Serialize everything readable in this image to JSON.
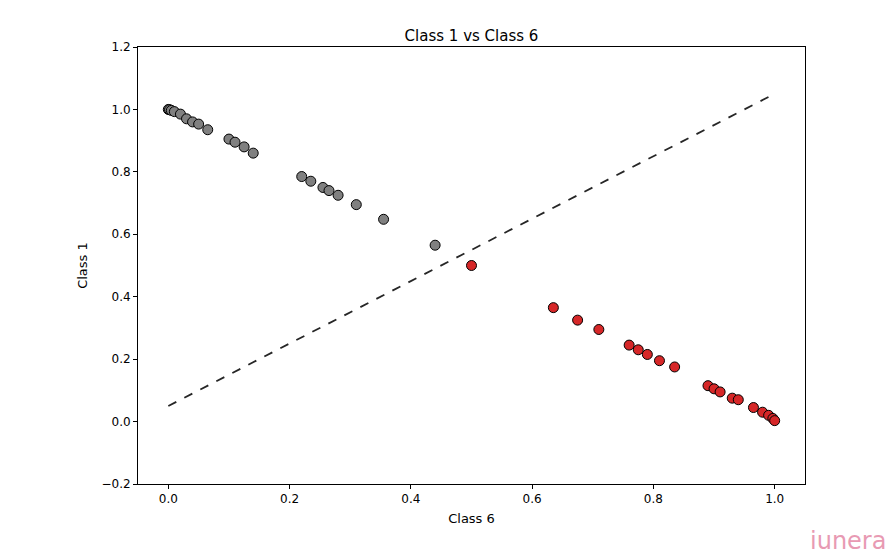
{
  "chart_data": {
    "type": "scatter",
    "title": "Class 1 vs Class 6",
    "x_label": "Class 6",
    "y_label": "Class 1",
    "annotations": [
      "iunera"
    ],
    "grid": false,
    "xlim": [
      -0.05,
      1.05
    ],
    "ylim": [
      -0.2,
      1.2
    ],
    "xticks": [
      {
        "value": 0,
        "label": "0.0"
      },
      {
        "value": 0.2,
        "label": "0.2"
      },
      {
        "value": 0.4,
        "label": "0.4"
      },
      {
        "value": 0.6,
        "label": "0.6"
      },
      {
        "value": 0.8,
        "label": "0.8"
      },
      {
        "value": 1,
        "label": "1.0"
      }
    ],
    "yticks": [
      {
        "value": -0.2,
        "label": "−0.2"
      },
      {
        "value": 0,
        "label": "0.0"
      },
      {
        "value": 0.2,
        "label": "0.2"
      },
      {
        "value": 0.4,
        "label": "0.4"
      },
      {
        "value": 0.6,
        "label": "0.6"
      },
      {
        "value": 0.8,
        "label": "0.8"
      },
      {
        "value": 1,
        "label": "1.0"
      },
      {
        "value": 1.2,
        "label": "1.2"
      }
    ],
    "series": [
      {
        "type": "scatter",
        "color": "#808080",
        "marker": "circle",
        "x": [
          0,
          0.002,
          0.005,
          0.01,
          0.02,
          0.03,
          0.04,
          0.05,
          0.065,
          0.1,
          0.11,
          0.125,
          0.14,
          0.22,
          0.235,
          0.255,
          0.265,
          0.28,
          0.31,
          0.355,
          0.44
        ],
        "values": [
          1.0,
          0.999,
          0.997,
          0.993,
          0.985,
          0.97,
          0.96,
          0.953,
          0.935,
          0.905,
          0.895,
          0.88,
          0.86,
          0.785,
          0.77,
          0.75,
          0.74,
          0.725,
          0.695,
          0.648,
          0.565
        ]
      },
      {
        "type": "scatter",
        "color": "#d62728",
        "marker": "circle",
        "x": [
          0.5,
          0.635,
          0.675,
          0.71,
          0.76,
          0.775,
          0.79,
          0.81,
          0.835,
          0.89,
          0.9,
          0.91,
          0.93,
          0.94,
          0.965,
          0.98,
          0.99,
          0.997,
          1.0
        ],
        "values": [
          0.5,
          0.365,
          0.325,
          0.295,
          0.245,
          0.23,
          0.215,
          0.195,
          0.175,
          0.115,
          0.105,
          0.095,
          0.075,
          0.07,
          0.045,
          0.03,
          0.02,
          0.01,
          0.003
        ]
      },
      {
        "type": "line",
        "color": "#262626",
        "line_style": "dashed",
        "x": [
          0,
          1
        ],
        "values": [
          0.05,
          1.05
        ]
      }
    ]
  }
}
